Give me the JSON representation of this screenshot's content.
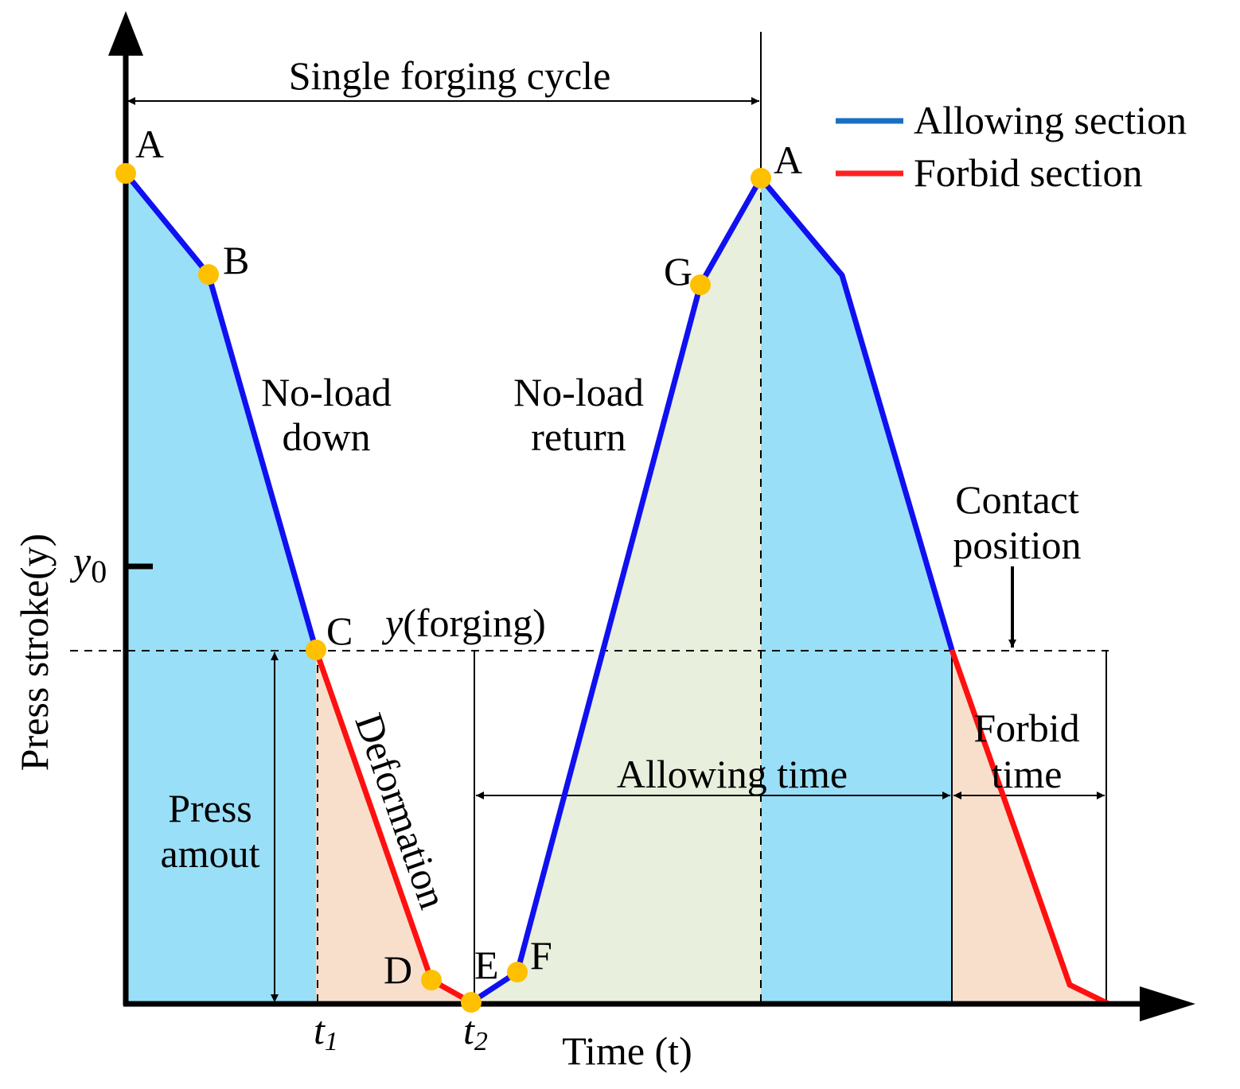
{
  "axes": {
    "y_label": "Press stroke(y)",
    "x_label": "Time (t)"
  },
  "markers": {
    "y0": {
      "base": "y",
      "sub": "0"
    },
    "t1": {
      "base": "t",
      "sub": "1"
    },
    "t2": {
      "base": "t",
      "sub": "2"
    }
  },
  "points": {
    "A_start": "A",
    "B": "B",
    "C": "C",
    "D": "D",
    "E": "E",
    "F": "F",
    "G": "G",
    "A_end": "A"
  },
  "legend": {
    "items": [
      {
        "label": "Allowing section",
        "color": "#1a6fc4"
      },
      {
        "label": "Forbid section",
        "color": "#ff2020"
      }
    ]
  },
  "annotations": {
    "cycle": "Single forging cycle",
    "no_load_down": {
      "lines": [
        "No-load",
        "down"
      ]
    },
    "no_load_return": {
      "lines": [
        "No-load",
        "return"
      ]
    },
    "contact": {
      "lines": [
        "Contact",
        "position"
      ]
    },
    "forging": {
      "italic": "y",
      "rest": "(forging)"
    },
    "deformation": "Deformation",
    "press_amount": {
      "lines": [
        "Press",
        "amout"
      ]
    },
    "allowing_time": "Allowing time",
    "forbid_time": {
      "lines": [
        "Forbid",
        "time"
      ]
    }
  }
}
